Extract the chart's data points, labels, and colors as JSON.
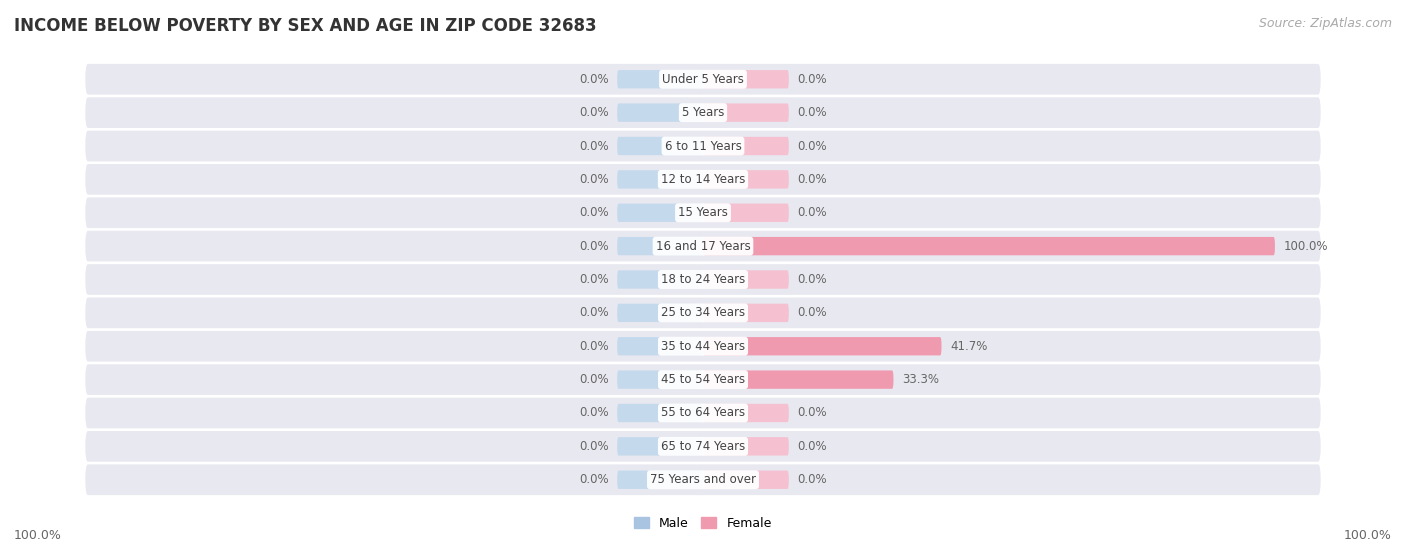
{
  "title": "INCOME BELOW POVERTY BY SEX AND AGE IN ZIP CODE 32683",
  "source": "Source: ZipAtlas.com",
  "categories": [
    "Under 5 Years",
    "5 Years",
    "6 to 11 Years",
    "12 to 14 Years",
    "15 Years",
    "16 and 17 Years",
    "18 to 24 Years",
    "25 to 34 Years",
    "35 to 44 Years",
    "45 to 54 Years",
    "55 to 64 Years",
    "65 to 74 Years",
    "75 Years and over"
  ],
  "male_values": [
    0.0,
    0.0,
    0.0,
    0.0,
    0.0,
    0.0,
    0.0,
    0.0,
    0.0,
    0.0,
    0.0,
    0.0,
    0.0
  ],
  "female_values": [
    0.0,
    0.0,
    0.0,
    0.0,
    0.0,
    100.0,
    0.0,
    0.0,
    41.7,
    33.3,
    0.0,
    0.0,
    0.0
  ],
  "male_color": "#a8c4e0",
  "female_color": "#f09ab0",
  "female_color_light": "#f5c0cf",
  "male_color_light": "#c5d9ed",
  "male_label": "Male",
  "female_label": "Female",
  "row_bg_color": "#e8e8f0",
  "title_fontsize": 12,
  "source_fontsize": 9,
  "label_fontsize": 9,
  "bar_label_fontsize": 8.5,
  "cat_label_fontsize": 8.5,
  "axis_max": 100.0,
  "base_bar_width": 15.0,
  "bottom_left_label": "100.0%",
  "bottom_right_label": "100.0%"
}
